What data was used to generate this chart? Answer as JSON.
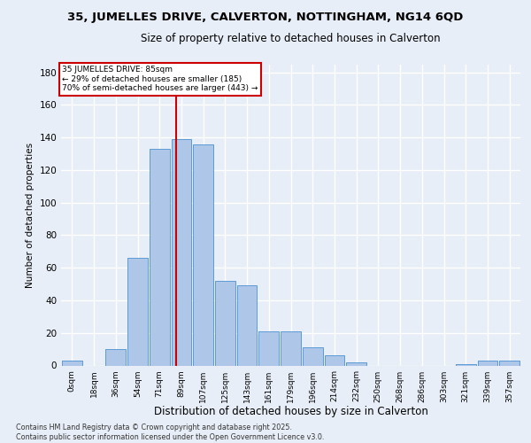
{
  "title1": "35, JUMELLES DRIVE, CALVERTON, NOTTINGHAM, NG14 6QD",
  "title2": "Size of property relative to detached houses in Calverton",
  "xlabel": "Distribution of detached houses by size in Calverton",
  "ylabel": "Number of detached properties",
  "footnote1": "Contains HM Land Registry data © Crown copyright and database right 2025.",
  "footnote2": "Contains public sector information licensed under the Open Government Licence v3.0.",
  "bar_labels": [
    "0sqm",
    "18sqm",
    "36sqm",
    "54sqm",
    "71sqm",
    "89sqm",
    "107sqm",
    "125sqm",
    "143sqm",
    "161sqm",
    "179sqm",
    "196sqm",
    "214sqm",
    "232sqm",
    "250sqm",
    "268sqm",
    "286sqm",
    "303sqm",
    "321sqm",
    "339sqm",
    "357sqm"
  ],
  "bar_values": [
    3,
    0,
    10,
    66,
    133,
    139,
    136,
    52,
    49,
    21,
    21,
    11,
    6,
    2,
    0,
    0,
    0,
    0,
    1,
    3,
    3
  ],
  "bar_color": "#aec6e8",
  "bar_edge_color": "#5b9bd5",
  "ylim": [
    0,
    185
  ],
  "yticks": [
    0,
    20,
    40,
    60,
    80,
    100,
    120,
    140,
    160,
    180
  ],
  "property_line_color": "#cc0000",
  "annotation_title": "35 JUMELLES DRIVE: 85sqm",
  "annotation_line1": "← 29% of detached houses are smaller (185)",
  "annotation_line2": "70% of semi-detached houses are larger (443) →",
  "annotation_box_color": "#cc0000",
  "background_color": "#e8eef7",
  "grid_color": "#ffffff"
}
